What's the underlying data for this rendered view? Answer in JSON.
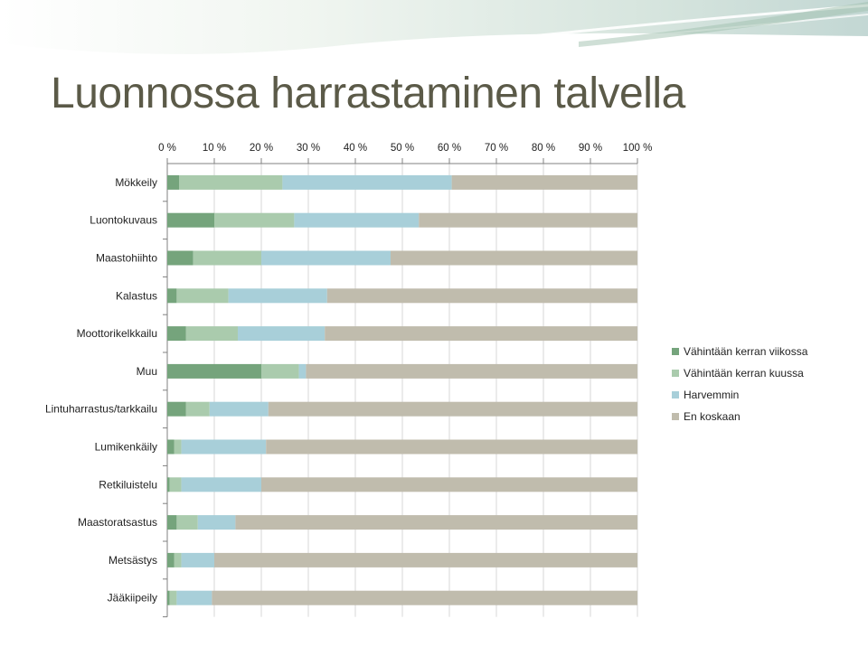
{
  "page": {
    "title": "Luonnossa harrastaminen talvella"
  },
  "chart_data": {
    "type": "bar",
    "orientation": "horizontal",
    "stacked": true,
    "title": "",
    "xlabel": "",
    "ylabel": "",
    "xlim": [
      0,
      100
    ],
    "x_tick_labels": [
      "0 %",
      "10 %",
      "20 %",
      "30 %",
      "40 %",
      "50 %",
      "60 %",
      "70 %",
      "80 %",
      "90 %",
      "100 %"
    ],
    "x_tick_values": [
      0,
      10,
      20,
      30,
      40,
      50,
      60,
      70,
      80,
      90,
      100
    ],
    "x_axis_position": "top",
    "grid": "vertical",
    "legend_position": "right",
    "categories": [
      "Mökkeily",
      "Luontokuvaus",
      "Maastohiihto",
      "Kalastus",
      "Moottorikelkkailu",
      "Muu",
      "Lintuharrastus/tarkkailu",
      "Lumikenkäily",
      "Retkiluistelu",
      "Maastoratsastus",
      "Metsästys",
      "Jääkiipeily"
    ],
    "series": [
      {
        "name": "Vähintään kerran viikossa",
        "color": "#75a47c",
        "values": [
          2.5,
          10,
          5.5,
          2,
          4,
          20,
          4,
          1.5,
          0.5,
          2,
          1.5,
          0.5
        ]
      },
      {
        "name": "Vähintään kerran kuussa",
        "color": "#aacbad",
        "values": [
          22,
          17,
          14.5,
          11,
          11,
          8,
          5,
          1.5,
          2.5,
          4.5,
          1.5,
          1.5
        ]
      },
      {
        "name": "Harvemmin",
        "color": "#a8cfd9",
        "values": [
          36,
          26.5,
          27.5,
          21,
          18.5,
          1.5,
          12.5,
          18,
          17,
          8,
          7,
          7.5
        ]
      },
      {
        "name": "En koskaan",
        "color": "#c0bcad",
        "values": [
          39.5,
          46.5,
          52.5,
          66,
          66.5,
          70.5,
          78.5,
          79,
          80,
          85.5,
          90,
          90.5
        ]
      }
    ]
  }
}
